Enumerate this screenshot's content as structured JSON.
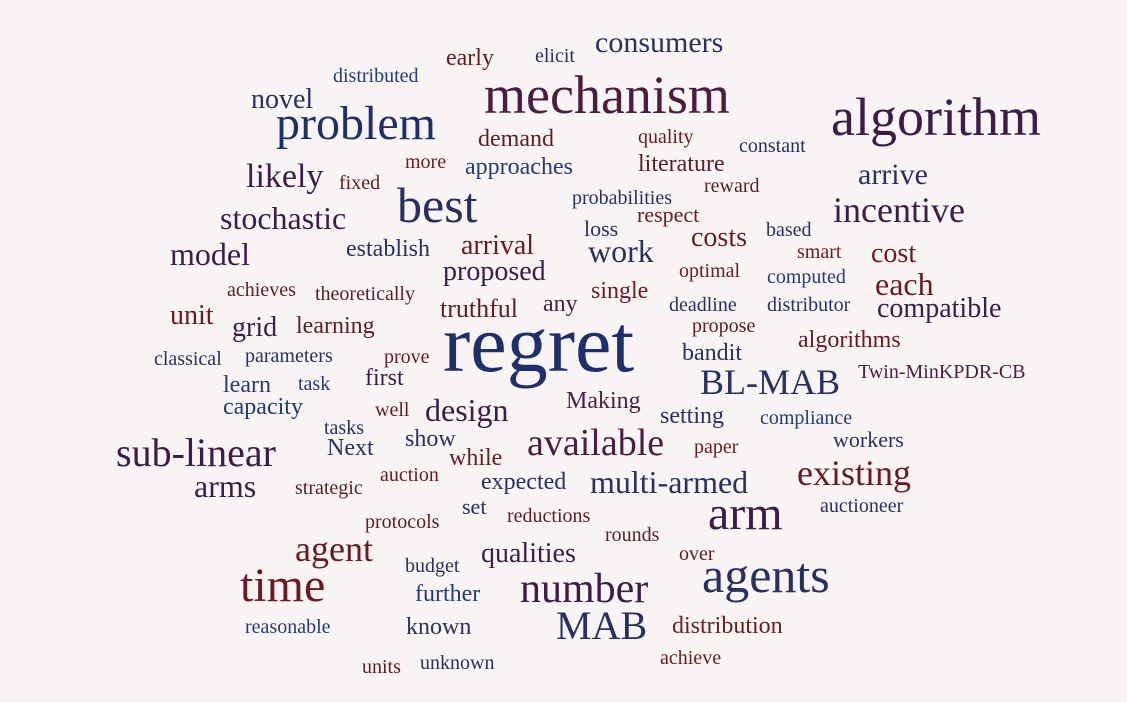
{
  "words": {
    "regret": "regret",
    "mechanism": "mechanism",
    "algorithm": "algorithm",
    "problem": "problem",
    "best": "best",
    "time": "time",
    "agents": "agents",
    "arm": "arm",
    "number": "number",
    "MAB": "MAB",
    "BL_MAB": "BL-MAB",
    "sub_linear": "sub-linear",
    "available": "available",
    "existing": "existing",
    "incentive": "incentive",
    "agent": "agent",
    "multi_armed": "multi-armed",
    "consumers": "consumers",
    "likely": "likely",
    "stochastic": "stochastic",
    "model": "model",
    "each": "each",
    "compatible": "compatible",
    "arrive": "arrive",
    "design": "design",
    "arms": "arms",
    "work": "work",
    "novel": "novel",
    "proposed": "proposed",
    "arrival": "arrival",
    "costs": "costs",
    "cost": "cost",
    "unit": "unit",
    "grid": "grid",
    "truthful": "truthful",
    "learning": "learning",
    "qualities": "qualities",
    "distribution": "distribution",
    "demand": "demand",
    "early": "early",
    "literature": "literature",
    "approaches": "approaches",
    "establish": "establish",
    "single": "single",
    "any": "any",
    "bandit": "bandit",
    "algorithms": "algorithms",
    "setting": "setting",
    "Making": "Making",
    "expected": "expected",
    "further": "further",
    "known": "known",
    "first": "first",
    "learn": "learn",
    "capacity": "capacity",
    "Next": "Next",
    "show": "show",
    "while": "while",
    "workers": "workers",
    "compliance": "compliance",
    "auctioneer": "auctioneer",
    "respect": "respect",
    "loss": "loss",
    "probabilities": "probabilities",
    "quality": "quality",
    "constant": "constant",
    "reward": "reward",
    "elicit": "elicit",
    "distributed": "distributed",
    "more": "more",
    "fixed": "fixed",
    "based": "based",
    "smart": "smart",
    "optimal": "optimal",
    "computed": "computed",
    "deadline": "deadline",
    "distributor": "distributor",
    "propose": "propose",
    "achieves": "achieves",
    "theoretically": "theoretically",
    "classical": "classical",
    "parameters": "parameters",
    "prove": "prove",
    "task": "task",
    "well": "well",
    "tasks": "tasks",
    "Twin_MinKPDR_CB": "Twin-MinKPDR-CB",
    "paper": "paper",
    "auction": "auction",
    "strategic": "strategic",
    "set": "set",
    "reductions": "reductions",
    "protocols": "protocols",
    "rounds": "rounds",
    "budget": "budget",
    "over": "over",
    "reasonable": "reasonable",
    "units": "units",
    "unknown": "unknown",
    "achieve": "achieve"
  },
  "colors": {
    "background": "#f8f4f4",
    "navy": "#1f2f6b",
    "dark_navy": "#2a2f63",
    "blue": "#243a7a",
    "plum": "#3c1c48",
    "dark_purple": "#4b1d3f",
    "dark_red": "#6b1a23",
    "maroon": "#5b1c2c"
  }
}
